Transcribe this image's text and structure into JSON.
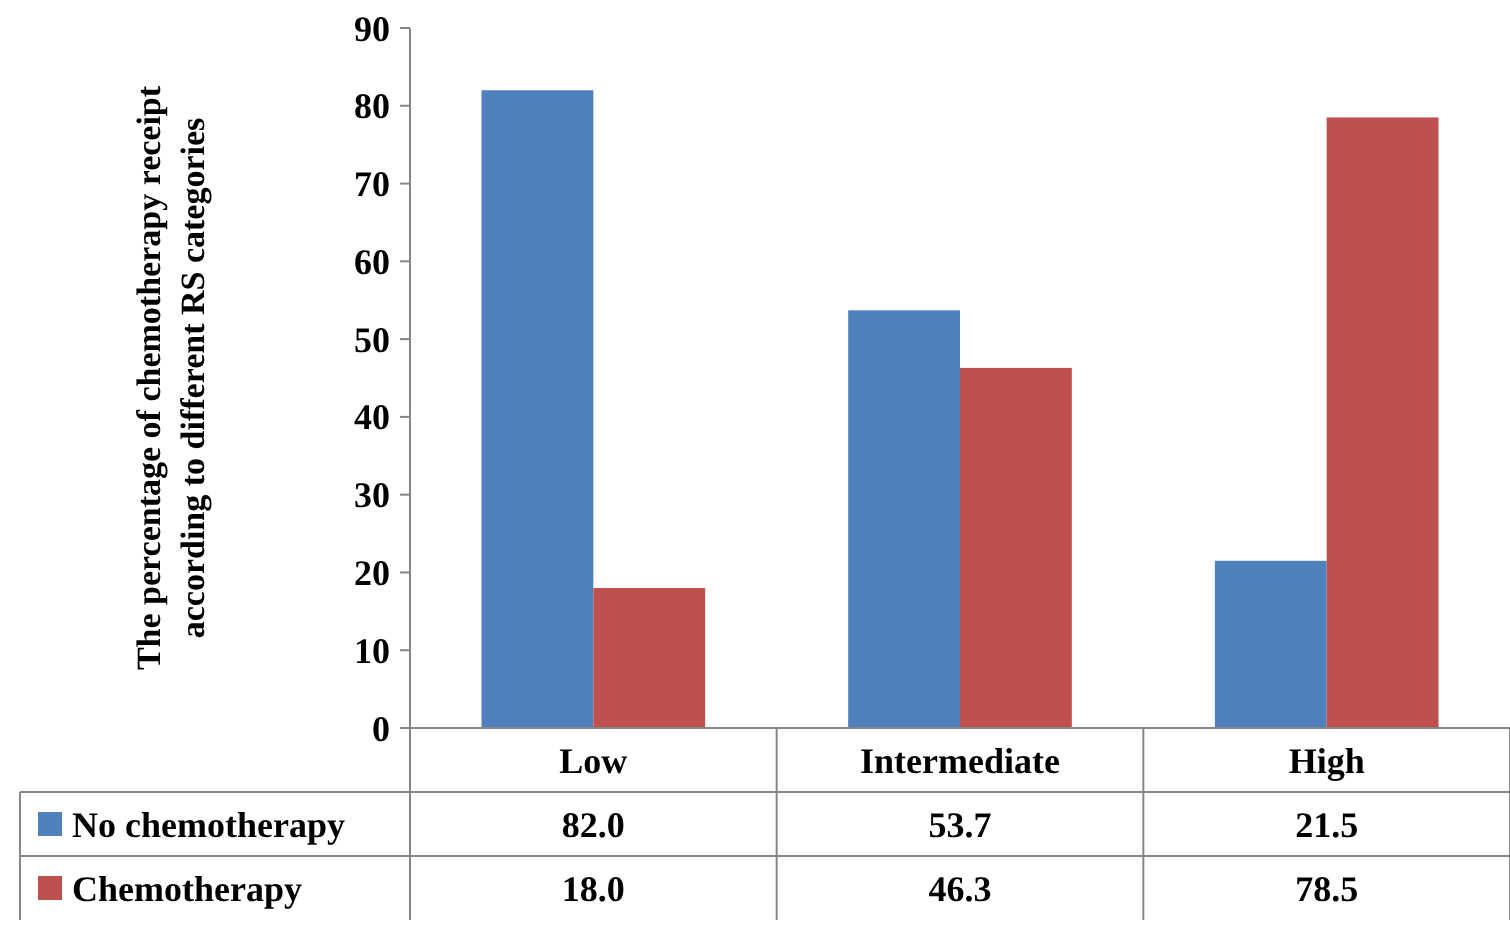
{
  "chart_data": {
    "type": "bar",
    "ylabel": "The percentage of chemotherapy receipt according to different RS categories",
    "categories": [
      "Low",
      "Intermediate",
      "High"
    ],
    "series": [
      {
        "name": "No chemotherapy",
        "color": "#4f81bd",
        "values": [
          82.0,
          53.7,
          21.5
        ],
        "value_labels": [
          "82.0",
          "53.7",
          "21.5"
        ]
      },
      {
        "name": "Chemotherapy",
        "color": "#c0504d",
        "values": [
          18.0,
          46.3,
          78.5
        ],
        "value_labels": [
          "18.0",
          "46.3",
          "78.5"
        ]
      }
    ],
    "ylim": [
      0,
      90
    ],
    "yticks": [
      0,
      10,
      20,
      30,
      40,
      50,
      60,
      70,
      80,
      90
    ],
    "grid": false,
    "legend": "bottom"
  }
}
